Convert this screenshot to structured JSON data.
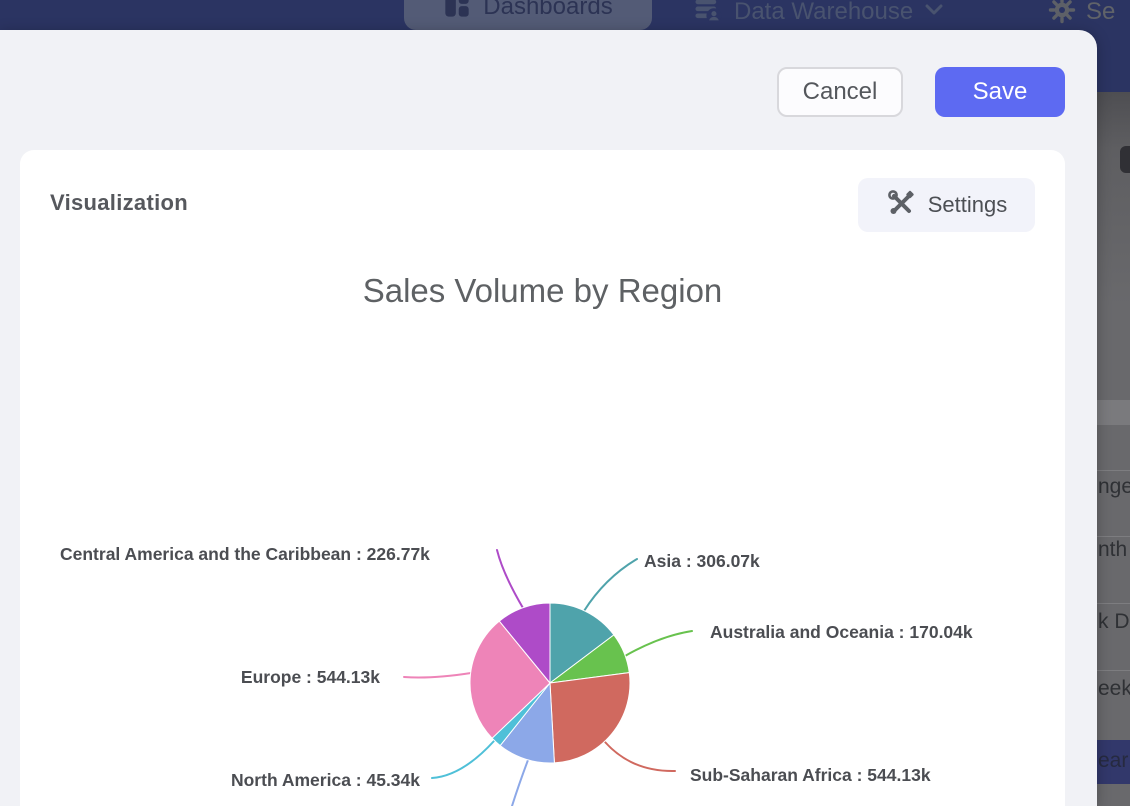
{
  "app_header": {
    "nav": [
      {
        "label": "Dashboards",
        "icon": "dashboard-icon",
        "active": true
      },
      {
        "label": "Data Warehouse",
        "icon": "database-user-icon",
        "has_chevron": true
      },
      {
        "label": "Se",
        "icon": "gear-icon",
        "truncated": true
      }
    ]
  },
  "modal": {
    "cancel_label": "Cancel",
    "save_label": "Save",
    "panel_title": "Visualization",
    "settings_label": "Settings",
    "save_color": "#5d6af2"
  },
  "chart_data": {
    "type": "pie",
    "title": "Sales Volume by Region",
    "unit": "k",
    "legend": "none",
    "label_format": "{name} : {value}k",
    "slices": [
      {
        "label": "Asia",
        "value": 306.07,
        "display": "Asia : 306.07k",
        "color": "#4fa3ab",
        "label_visible": true
      },
      {
        "label": "Australia and Oceania",
        "value": 170.04,
        "display": "Australia and Oceania : 170.04k",
        "color": "#68c24e",
        "label_visible": true
      },
      {
        "label": "Sub-Saharan Africa",
        "value": 544.13,
        "display": "Sub-Saharan Africa : 544.13k",
        "color": "#d0695f",
        "label_visible": true
      },
      {
        "label": "",
        "value": 240,
        "display": "",
        "color": "#8ca8e8",
        "label_visible": false
      },
      {
        "label": "North America",
        "value": 45.34,
        "display": "North America : 45.34k",
        "color": "#4fc0d8",
        "label_visible": true
      },
      {
        "label": "Europe",
        "value": 544.13,
        "display": "Europe : 544.13k",
        "color": "#ee84b8",
        "label_visible": true
      },
      {
        "label": "Central America and the Caribbean",
        "value": 226.77,
        "display": "Central America and the Caribbean : 226.77k",
        "color": "#ae4bc8",
        "label_visible": true,
        "truncated": true
      }
    ]
  },
  "background_page": {
    "menu_fragments": [
      {
        "text": "nge",
        "selected": false
      },
      {
        "text": "nth",
        "selected": false
      },
      {
        "text": "k D",
        "selected": false
      },
      {
        "text": "eek",
        "selected": false
      },
      {
        "text": "ear",
        "selected": true
      }
    ]
  }
}
